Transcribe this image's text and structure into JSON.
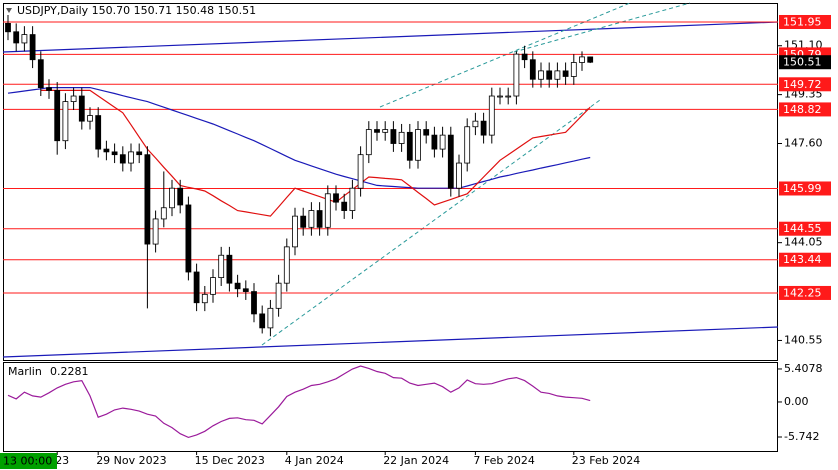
{
  "chart_data": [
    {
      "type": "candlestick",
      "title": "USDJPY,Daily  150.70 150.71 150.48 150.51",
      "crosshair_time": "13 00:00",
      "categories": [
        null,
        null,
        null,
        null,
        null,
        null,
        "23",
        null,
        null,
        null,
        null,
        "29 Nov 2023",
        null,
        null,
        null,
        null,
        null,
        null,
        null,
        null,
        null,
        null,
        null,
        "15 Dec 2023",
        null,
        null,
        null,
        null,
        null,
        null,
        null,
        null,
        null,
        null,
        "4 Jan 2024",
        null,
        null,
        null,
        null,
        null,
        null,
        null,
        null,
        null,
        null,
        null,
        "22 Jan 2024",
        null,
        null,
        null,
        null,
        null,
        null,
        null,
        null,
        null,
        null,
        "7 Feb 2024",
        null,
        null,
        null,
        null,
        null,
        null,
        null,
        null,
        null,
        null,
        null,
        "23 Feb 2024",
        null,
        null
      ],
      "open": [
        151.9,
        151.6,
        151.2,
        151.5,
        150.6,
        149.6,
        149.5,
        147.7,
        149.1,
        149.3,
        148.4,
        148.6,
        147.4,
        147.3,
        147.2,
        146.9,
        147.3,
        147.2,
        144.0,
        144.9,
        145.3,
        146.0,
        145.4,
        143.0,
        141.9,
        142.2,
        142.8,
        143.6,
        142.6,
        142.4,
        142.3,
        141.5,
        141.0,
        141.7,
        142.6,
        143.9,
        145.0,
        144.6,
        145.2,
        144.6,
        145.8,
        145.5,
        145.2,
        146.0,
        147.2,
        148.1,
        148.0,
        148.1,
        147.6,
        148.0,
        147.0,
        148.1,
        147.9,
        147.4,
        147.9,
        146.0,
        146.9,
        148.2,
        148.4,
        147.9,
        149.3,
        149.3,
        149.3,
        150.8,
        150.6,
        149.9,
        150.2,
        149.9,
        150.2,
        150.0,
        150.5,
        150.7
      ],
      "high": [
        152.2,
        151.9,
        151.8,
        151.8,
        150.9,
        149.9,
        149.8,
        149.4,
        149.6,
        149.6,
        148.9,
        148.9,
        147.7,
        147.6,
        147.5,
        147.6,
        147.6,
        147.5,
        145.2,
        146.6,
        146.3,
        146.3,
        145.7,
        143.3,
        142.5,
        143.1,
        143.9,
        143.9,
        142.9,
        142.7,
        142.6,
        141.8,
        142.0,
        142.9,
        144.2,
        145.3,
        145.3,
        145.5,
        145.5,
        146.1,
        146.1,
        145.8,
        146.3,
        147.5,
        148.4,
        148.4,
        148.4,
        148.4,
        148.3,
        148.3,
        148.4,
        148.4,
        148.2,
        148.2,
        148.2,
        147.2,
        148.5,
        148.7,
        148.7,
        149.6,
        149.6,
        149.6,
        150.9,
        151.1,
        150.9,
        150.5,
        150.5,
        150.5,
        150.5,
        150.8,
        150.9,
        150.71
      ],
      "low": [
        151.3,
        150.9,
        150.9,
        150.3,
        149.3,
        149.2,
        147.2,
        147.4,
        148.8,
        148.1,
        148.1,
        147.1,
        147.0,
        146.9,
        146.6,
        146.6,
        146.9,
        141.7,
        143.7,
        144.6,
        145.0,
        145.1,
        142.7,
        141.6,
        141.6,
        141.9,
        142.5,
        142.3,
        142.1,
        142.0,
        141.2,
        140.8,
        140.7,
        141.4,
        142.3,
        143.6,
        144.3,
        144.3,
        144.3,
        144.3,
        145.2,
        144.9,
        144.9,
        145.7,
        146.9,
        147.7,
        147.7,
        147.3,
        147.3,
        146.7,
        146.7,
        147.6,
        147.1,
        147.1,
        145.7,
        145.7,
        146.6,
        147.9,
        147.6,
        147.6,
        149.0,
        149.0,
        149.0,
        150.3,
        149.6,
        149.6,
        149.6,
        149.6,
        149.7,
        149.7,
        150.2,
        150.48
      ],
      "close": [
        151.6,
        151.2,
        151.5,
        150.6,
        149.6,
        149.5,
        147.7,
        149.1,
        149.3,
        148.4,
        148.6,
        147.4,
        147.3,
        147.2,
        146.9,
        147.3,
        147.2,
        144.0,
        144.9,
        145.3,
        146.0,
        145.4,
        143.0,
        141.9,
        142.2,
        142.8,
        143.6,
        142.6,
        142.4,
        142.3,
        141.5,
        141.0,
        141.7,
        142.6,
        143.9,
        145.0,
        144.6,
        145.2,
        144.6,
        145.8,
        145.5,
        145.2,
        146.0,
        147.2,
        148.1,
        148.0,
        148.1,
        147.6,
        148.0,
        147.0,
        148.1,
        147.9,
        147.4,
        147.9,
        146.0,
        146.9,
        148.2,
        148.4,
        147.9,
        149.3,
        149.3,
        149.3,
        150.8,
        150.6,
        149.9,
        150.2,
        149.9,
        150.2,
        150.0,
        150.5,
        150.7,
        150.51
      ],
      "up_color": "#ffffff",
      "down_color": "#000000",
      "edge_color": "#000000",
      "lines": [
        {
          "color": "#1a1ab8",
          "values": [
            149.4,
            149.44,
            149.48,
            149.52,
            149.56,
            149.6,
            149.6,
            149.6,
            149.6,
            149.6,
            149.6,
            149.53,
            149.46,
            149.39,
            149.31,
            149.24,
            149.17,
            149.1,
            149.0,
            148.9,
            148.8,
            148.7,
            148.6,
            148.5,
            148.4,
            148.3,
            148.18,
            148.06,
            147.94,
            147.82,
            147.7,
            147.56,
            147.42,
            147.28,
            147.14,
            147.0,
            146.9,
            146.8,
            146.7,
            146.6,
            146.5,
            146.42,
            146.34,
            146.26,
            146.18,
            146.1,
            146.08,
            146.06,
            146.04,
            146.02,
            146.0,
            146.0,
            146.0,
            146.0,
            146.0,
            146.0,
            146.08,
            146.16,
            146.24,
            146.32,
            146.4,
            146.46,
            146.53,
            146.59,
            146.65,
            146.72,
            146.78,
            146.84,
            146.91,
            146.97,
            147.04,
            147.1
          ]
        },
        {
          "color": "#e01010",
          "values": [
            null,
            null,
            null,
            null,
            149.5,
            149.5,
            149.5,
            149.5,
            149.5,
            149.5,
            149.5,
            149.3,
            149.1,
            148.9,
            148.7,
            148.27,
            147.83,
            147.4,
            147.08,
            146.75,
            146.43,
            146.1,
            146.03,
            145.97,
            145.9,
            145.73,
            145.55,
            145.38,
            145.2,
            145.15,
            145.1,
            145.05,
            145.0,
            145.33,
            145.67,
            146.0,
            145.9,
            145.8,
            145.7,
            145.6,
            145.5,
            145.73,
            145.95,
            146.18,
            146.4,
            146.38,
            146.35,
            146.33,
            146.3,
            146.08,
            145.85,
            145.63,
            145.4,
            145.5,
            145.6,
            145.7,
            145.8,
            146.1,
            146.4,
            146.7,
            147.0,
            147.2,
            147.4,
            147.6,
            147.8,
            147.85,
            147.9,
            147.95,
            148.0,
            148.3,
            148.6,
            148.9
          ]
        }
      ],
      "levels": [
        151.95,
        150.79,
        149.72,
        148.82,
        145.99,
        144.55,
        143.44,
        142.25
      ],
      "level_color": "#ff1a1a",
      "current_price": 150.51,
      "ylim": [
        139.85,
        152.63
      ],
      "yticks": [
        {
          "value": 151.1,
          "label": "151.10"
        },
        149.35,
        {
          "value": 147.6,
          "label": "147.60"
        },
        144.05,
        140.55
      ],
      "grid": false
    },
    {
      "type": "line",
      "title": "Marlin",
      "last_value": 0.2281,
      "color": "#9b1b9b",
      "values": [
        1.1,
        0.5,
        1.6,
        1.0,
        0.8,
        1.5,
        2.3,
        2.9,
        3.3,
        3.5,
        1.0,
        -2.5,
        -2.0,
        -1.3,
        -1.0,
        -1.2,
        -1.5,
        -2.0,
        -2.3,
        -3.5,
        -4.2,
        -5.2,
        -5.8,
        -5.4,
        -4.8,
        -3.9,
        -3.2,
        -2.7,
        -2.6,
        -2.9,
        -3.0,
        -3.6,
        -2.2,
        -0.8,
        0.9,
        1.6,
        2.1,
        2.7,
        2.9,
        3.3,
        3.8,
        4.6,
        5.4,
        5.9,
        5.5,
        5.0,
        4.7,
        4.0,
        3.9,
        3.1,
        2.7,
        2.9,
        3.1,
        2.5,
        1.6,
        2.3,
        3.6,
        3.0,
        2.9,
        3.0,
        3.4,
        3.8,
        4.0,
        3.5,
        2.6,
        1.6,
        1.4,
        1.0,
        0.8,
        0.7,
        0.6,
        0.2281
      ],
      "ylim": [
        -8.2,
        6.55
      ],
      "yticks": [
        5.4078,
        {
          "value": 0,
          "label": "0.00"
        },
        -5.742
      ],
      "grid": false
    }
  ]
}
